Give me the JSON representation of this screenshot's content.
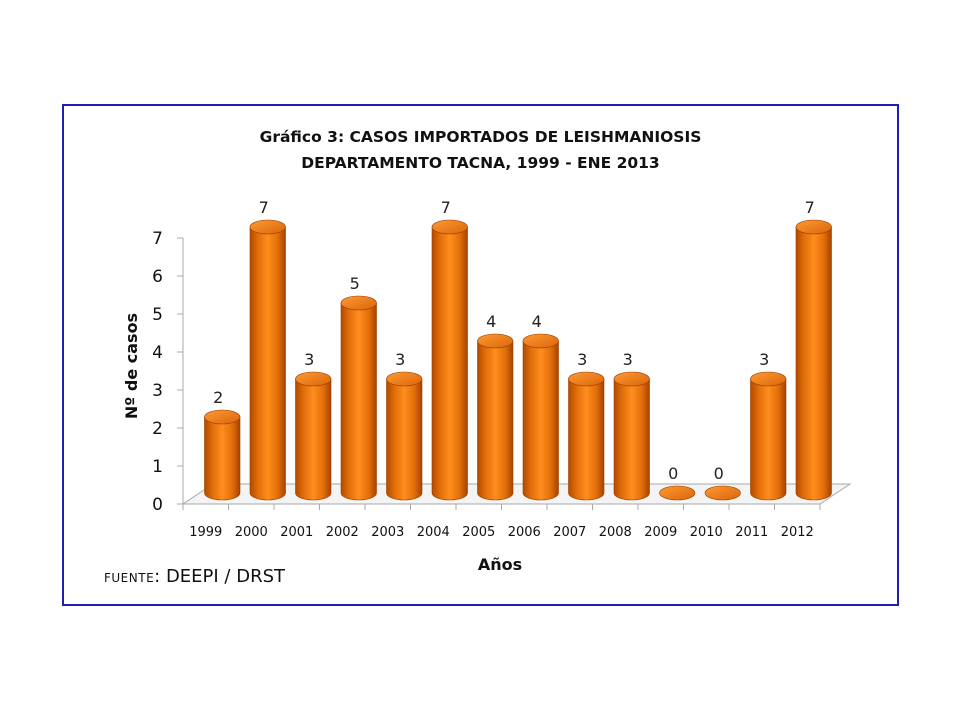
{
  "chart_data": {
    "type": "bar",
    "title_line1": "Gráfico 3: CASOS IMPORTADOS DE LEISHMANIOSIS",
    "title_line2": "DEPARTAMENTO TACNA, 1999 - ENE 2013",
    "xlabel": "Años",
    "ylabel": "Nº de casos",
    "ylim": [
      0,
      7
    ],
    "yticks": [
      "0",
      "1",
      "2",
      "3",
      "4",
      "5",
      "6",
      "7"
    ],
    "categories": [
      "1999",
      "2000",
      "2001",
      "2002",
      "2003",
      "2004",
      "2005",
      "2006",
      "2007",
      "2008",
      "2009",
      "2010",
      "2011",
      "2012"
    ],
    "values": [
      2,
      7,
      3,
      5,
      3,
      7,
      4,
      4,
      3,
      3,
      0,
      0,
      3,
      7
    ],
    "data_labels": [
      "2",
      "7",
      "3",
      "5",
      "3",
      "7",
      "4",
      "4",
      "3",
      "3",
      "0",
      "0",
      "3",
      "7"
    ],
    "bar_color": "#e8740c",
    "grid": false,
    "legend": "none"
  },
  "source": {
    "label": "FUENTE",
    "value": ": DEEPI / DRST"
  }
}
